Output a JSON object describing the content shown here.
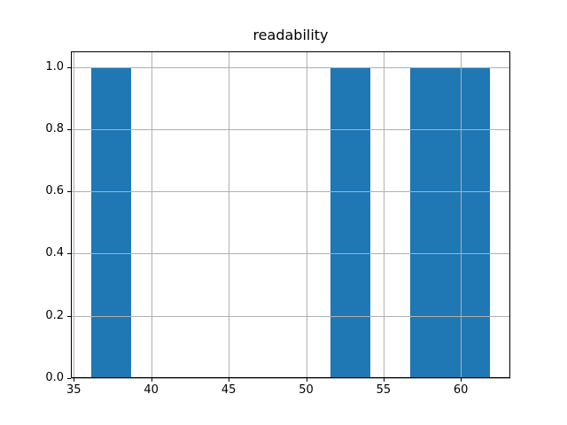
{
  "title": "readability",
  "chart_data": {
    "type": "bar",
    "subtype": "histogram",
    "title": "readability",
    "xlabel": "",
    "ylabel": "",
    "bin_edges": [
      36.1,
      38.68,
      41.26,
      43.84,
      46.42,
      49.0,
      51.58,
      54.16,
      56.74,
      59.32,
      61.9
    ],
    "counts": [
      1,
      0,
      0,
      0,
      0,
      0,
      1,
      0,
      1,
      1
    ],
    "xlim": [
      34.81,
      63.19
    ],
    "ylim": [
      0,
      1.05
    ],
    "x_ticks": [
      35,
      40,
      45,
      50,
      55,
      60
    ],
    "x_tick_labels": [
      "35",
      "40",
      "45",
      "50",
      "55",
      "60"
    ],
    "y_ticks": [
      0.0,
      0.2,
      0.4,
      0.6,
      0.8,
      1.0
    ],
    "y_tick_labels": [
      "0.0",
      "0.2",
      "0.4",
      "0.6",
      "0.8",
      "1.0"
    ],
    "grid": true,
    "grid_over_bars": true,
    "legend": "none",
    "bar_color": "#1f77b4",
    "grid_color": "#b0b0b0",
    "spine_color": "#000000",
    "tick_color": "#000000",
    "background_color": "#ffffff"
  }
}
